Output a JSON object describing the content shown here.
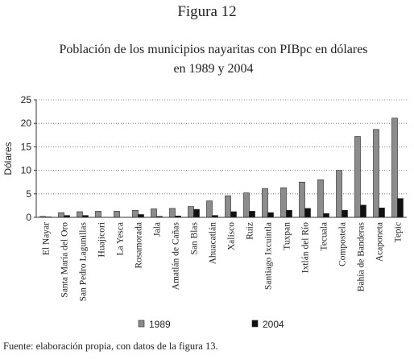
{
  "chart_data": {
    "type": "bar",
    "title": "Figura 12",
    "subtitle": [
      "Población de los municipios nayaritas con PIBpc en dólares",
      "en 1989 y 2004"
    ],
    "ylabel": "Dólares",
    "source": "Fuente: elaboración propia, con datos de la figura 13.",
    "categories": [
      "El Nayar",
      "Santa María del Oro",
      "San Pedro Lagunillas",
      "Huajicori",
      "La Yesca",
      "Rosamorada",
      "Jala",
      "Amatlán de Cañas",
      "San Blas",
      "Ahuacatlán",
      "Xalisco",
      "Ruiz",
      "Santiago Ixcuintla",
      "Tuxpan",
      "Ixtlán del Río",
      "Tecuala",
      "Compostela",
      "Bahía de Banderas",
      "Acaponeta",
      "Tepic"
    ],
    "series": [
      {
        "name": "1989",
        "color": "#8c8c8c",
        "values": [
          0.2,
          1.0,
          1.2,
          1.3,
          1.3,
          1.5,
          1.8,
          1.9,
          2.3,
          3.5,
          4.6,
          5.2,
          6.1,
          6.3,
          7.5,
          8.0,
          10.0,
          17.2,
          18.7,
          21.1
        ]
      },
      {
        "name": "2004",
        "color": "#111111",
        "values": [
          0.1,
          0.4,
          0.4,
          0.0,
          0.0,
          0.6,
          0.2,
          0.3,
          1.7,
          0.4,
          1.2,
          1.3,
          1.0,
          1.5,
          1.9,
          0.8,
          1.5,
          2.6,
          2.0,
          4.0
        ]
      }
    ],
    "ylim": [
      0,
      25
    ],
    "yticks": [
      0,
      5,
      10,
      15,
      20,
      25
    ],
    "grid": true
  }
}
